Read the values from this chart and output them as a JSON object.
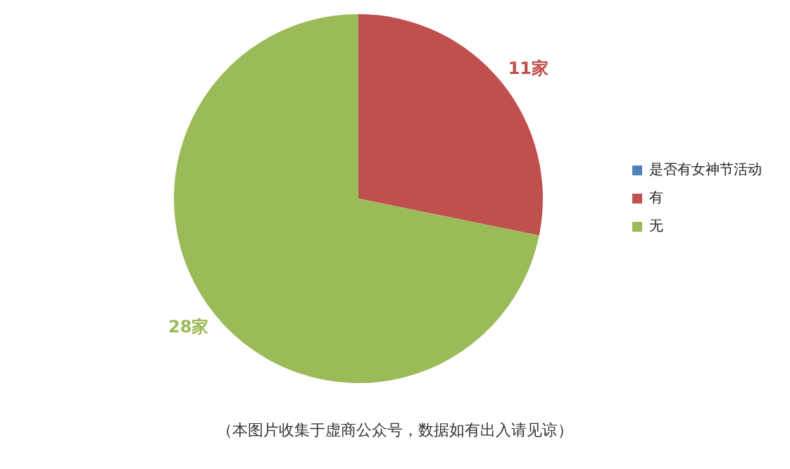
{
  "chart_data": {
    "type": "pie",
    "categories": [
      "是否有女神节活动",
      "有",
      "无"
    ],
    "values": [
      0,
      11,
      28
    ],
    "colors": [
      "#4f81bd",
      "#c0504d",
      "#9bbb59"
    ],
    "value_labels": [
      null,
      "11家",
      "28家"
    ],
    "legend": "right",
    "annotations": [
      "（本图片收集于虚商公众号，数据如有出入请见谅）"
    ]
  }
}
